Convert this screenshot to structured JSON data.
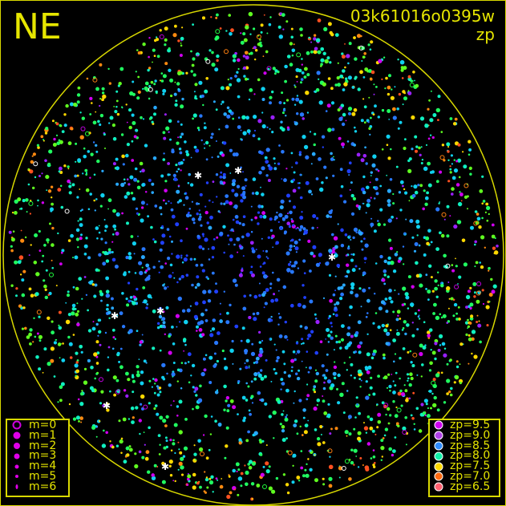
{
  "header": {
    "direction": "NE",
    "observation_id": "03k61016o0395w",
    "quantity": "zp"
  },
  "colors": {
    "frame": "#d8d800",
    "background": "#000000"
  },
  "chart_data": {
    "type": "scatter",
    "title": "03k61016o0395w",
    "subtitle": "zp",
    "field_label": "NE",
    "grid": false,
    "magnitude_legend": {
      "placement": "bottom-left",
      "entries": [
        {
          "label": "m=0",
          "m": 0,
          "marker": "open-circle"
        },
        {
          "label": "m=1",
          "m": 1
        },
        {
          "label": "m=2",
          "m": 2
        },
        {
          "label": "m=3",
          "m": 3
        },
        {
          "label": "m=4",
          "m": 4
        },
        {
          "label": "m=5",
          "m": 5
        },
        {
          "label": "m=6",
          "m": 6
        }
      ]
    },
    "zp_legend": {
      "placement": "bottom-right",
      "entries": [
        {
          "label": "zp=9.5",
          "zp": 9.5,
          "color": "#d000f0"
        },
        {
          "label": "zp=9.0",
          "zp": 9.0,
          "color": "#b040e8"
        },
        {
          "label": "zp=8.5",
          "zp": 8.5,
          "color": "#2e8cff"
        },
        {
          "label": "zp=8.0",
          "zp": 8.0,
          "color": "#10f0a8"
        },
        {
          "label": "zp=7.5",
          "zp": 7.5,
          "color": "#ffd800"
        },
        {
          "label": "zp=7.0",
          "zp": 7.0,
          "color": "#ff6a10"
        },
        {
          "label": "zp=6.5",
          "zp": 6.5,
          "color": "#ff6070"
        }
      ]
    }
  }
}
